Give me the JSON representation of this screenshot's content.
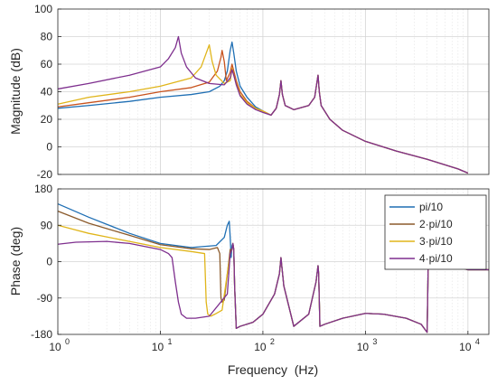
{
  "chart_data": [
    {
      "type": "line",
      "ylabel": "Magnitude (dB)",
      "xscale": "log",
      "xlim": [
        1,
        16000
      ],
      "ylim": [
        -20,
        100
      ],
      "yticks": [
        -20,
        0,
        20,
        40,
        60,
        80,
        100
      ],
      "grid": true,
      "series": [
        {
          "color": "#1f6fb4",
          "x": [
            1,
            2,
            5,
            10,
            20,
            30,
            38,
            42,
            45,
            48,
            50,
            52,
            55,
            60,
            70,
            85,
            100,
            120,
            135,
            145,
            150,
            155,
            165,
            200,
            280,
            320,
            345,
            355,
            370,
            450,
            600,
            1000,
            2000,
            4000,
            8000,
            10000
          ],
          "y": [
            28,
            30,
            33,
            36,
            38,
            40,
            44,
            48,
            55,
            70,
            76,
            68,
            55,
            44,
            36,
            29,
            26,
            23,
            28,
            38,
            48,
            38,
            30,
            27,
            30,
            36,
            52,
            40,
            30,
            20,
            12,
            4,
            -3,
            -9,
            -16,
            -19
          ]
        },
        {
          "color": "#c8531e",
          "x": [
            1,
            2,
            5,
            10,
            20,
            30,
            36,
            39,
            40,
            42,
            44,
            48,
            50,
            52,
            55,
            60,
            70,
            85,
            100,
            120,
            135,
            145,
            150,
            155,
            165,
            200,
            280,
            320,
            345,
            355,
            370,
            450,
            600,
            1000,
            2000,
            4000,
            8000,
            10000
          ],
          "y": [
            29,
            32,
            36,
            40,
            43,
            47,
            55,
            65,
            70,
            62,
            48,
            54,
            60,
            55,
            48,
            40,
            33,
            28,
            26,
            23,
            28,
            38,
            48,
            38,
            30,
            27,
            30,
            36,
            52,
            40,
            30,
            20,
            12,
            4,
            -3,
            -9,
            -16,
            -19
          ]
        },
        {
          "color": "#e0b51a",
          "x": [
            1,
            2,
            5,
            10,
            20,
            25,
            28,
            30,
            32,
            35,
            42,
            48,
            50,
            52,
            55,
            60,
            70,
            85,
            100,
            120,
            135,
            145,
            150,
            155,
            165,
            200,
            280,
            320,
            345,
            355,
            370,
            450,
            600,
            1000,
            2000,
            4000,
            8000,
            10000
          ],
          "y": [
            31,
            36,
            40,
            44,
            50,
            58,
            68,
            74,
            62,
            52,
            46,
            48,
            57,
            52,
            46,
            38,
            32,
            28,
            26,
            23,
            28,
            38,
            48,
            38,
            30,
            27,
            30,
            36,
            52,
            40,
            30,
            20,
            12,
            4,
            -3,
            -9,
            -16,
            -19
          ]
        },
        {
          "color": "#7e2f8e",
          "x": [
            1,
            2,
            5,
            10,
            12,
            14,
            15,
            16,
            18,
            22,
            30,
            42,
            48,
            50,
            52,
            55,
            60,
            70,
            85,
            100,
            120,
            135,
            145,
            150,
            155,
            165,
            200,
            280,
            320,
            345,
            355,
            370,
            450,
            600,
            1000,
            2000,
            4000,
            8000,
            10000
          ],
          "y": [
            42,
            46,
            52,
            58,
            64,
            72,
            80,
            68,
            58,
            50,
            46,
            45,
            50,
            56,
            52,
            45,
            37,
            31,
            27,
            25,
            23,
            28,
            38,
            48,
            38,
            30,
            27,
            30,
            36,
            52,
            40,
            30,
            20,
            12,
            4,
            -3,
            -9,
            -16,
            -19
          ]
        }
      ]
    },
    {
      "type": "line",
      "xlabel": "Frequency  (Hz)",
      "ylabel": "Phase (deg)",
      "xscale": "log",
      "xlim": [
        1,
        16000
      ],
      "ylim": [
        -180,
        180
      ],
      "xticks": [
        1,
        10,
        100,
        1000,
        10000
      ],
      "xtick_labels": [
        "10",
        "10",
        "10",
        "10",
        "10"
      ],
      "xtick_exponents": [
        "0",
        "1",
        "2",
        "3",
        "4"
      ],
      "yticks": [
        -180,
        -90,
        0,
        90,
        180
      ],
      "grid": true,
      "legend": {
        "position": "top-right",
        "entries": [
          "pi/10",
          "2·pi/10",
          "3·pi/10",
          "4·pi/10"
        ]
      },
      "series": [
        {
          "color": "#1f6fb4",
          "x": [
            1,
            2,
            5,
            10,
            20,
            35,
            42,
            45,
            47,
            48,
            49,
            50,
            51,
            52,
            53,
            55,
            60,
            80,
            100,
            130,
            145,
            150,
            160,
            200,
            280,
            330,
            345,
            350,
            360,
            400,
            600,
            1000,
            1500,
            2500,
            3500,
            4000,
            4100,
            4200,
            6000,
            10000,
            16000
          ],
          "y": [
            143,
            110,
            70,
            45,
            35,
            40,
            60,
            90,
            100,
            60,
            10,
            40,
            45,
            30,
            -60,
            -165,
            -160,
            -150,
            -130,
            -80,
            -30,
            10,
            -60,
            -160,
            -130,
            -50,
            -10,
            -30,
            -160,
            -155,
            -140,
            -128,
            -130,
            -140,
            -155,
            -175,
            0,
            10,
            -5,
            -20,
            -20
          ]
        },
        {
          "color": "#8b5a2b",
          "x": [
            1,
            2,
            5,
            10,
            20,
            30,
            36,
            38,
            39,
            40,
            42,
            48,
            50,
            51,
            52,
            53,
            55,
            60,
            80,
            100,
            130,
            145,
            150,
            160,
            200,
            280,
            330,
            345,
            350,
            360,
            400,
            600,
            1000,
            1500,
            2500,
            3500,
            4000,
            4100,
            4200,
            6000,
            10000,
            16000
          ],
          "y": [
            125,
            95,
            65,
            42,
            32,
            30,
            35,
            20,
            -90,
            -100,
            -95,
            30,
            30,
            45,
            30,
            -60,
            -165,
            -160,
            -150,
            -130,
            -80,
            -30,
            10,
            -60,
            -160,
            -130,
            -50,
            -10,
            -30,
            -160,
            -155,
            -140,
            -128,
            -130,
            -140,
            -155,
            -175,
            0,
            10,
            -5,
            -20,
            -20
          ]
        },
        {
          "color": "#e0b51a",
          "x": [
            1,
            2,
            5,
            10,
            20,
            27,
            28,
            29,
            31,
            34,
            40,
            48,
            50,
            51,
            52,
            53,
            55,
            60,
            80,
            100,
            130,
            145,
            150,
            160,
            200,
            280,
            330,
            345,
            350,
            360,
            400,
            600,
            1000,
            1500,
            2500,
            3500,
            4000,
            4100,
            4200,
            6000,
            10000,
            16000
          ],
          "y": [
            90,
            70,
            50,
            35,
            25,
            20,
            -100,
            -130,
            -135,
            -130,
            -120,
            20,
            30,
            45,
            30,
            -60,
            -165,
            -160,
            -150,
            -130,
            -80,
            -30,
            10,
            -60,
            -160,
            -130,
            -50,
            -10,
            -30,
            -160,
            -155,
            -140,
            -128,
            -130,
            -140,
            -155,
            -175,
            0,
            10,
            -5,
            -20,
            -20
          ]
        },
        {
          "color": "#7e2f8e",
          "x": [
            1,
            1.5,
            3,
            5,
            10,
            12,
            13,
            14,
            15,
            16,
            18,
            22,
            30,
            45,
            48,
            50,
            51,
            52,
            53,
            55,
            60,
            80,
            100,
            130,
            145,
            150,
            160,
            200,
            280,
            330,
            345,
            350,
            360,
            400,
            600,
            1000,
            1500,
            2500,
            3500,
            4000,
            4100,
            4200,
            6000,
            10000,
            16000
          ],
          "y": [
            43,
            48,
            50,
            45,
            30,
            20,
            10,
            -50,
            -100,
            -130,
            -140,
            -140,
            -135,
            -80,
            20,
            30,
            45,
            30,
            -60,
            -165,
            -160,
            -150,
            -130,
            -80,
            -30,
            10,
            -60,
            -160,
            -130,
            -50,
            -10,
            -30,
            -160,
            -155,
            -140,
            -128,
            -130,
            -140,
            -155,
            -175,
            0,
            10,
            -5,
            -20,
            -20
          ]
        }
      ]
    }
  ]
}
